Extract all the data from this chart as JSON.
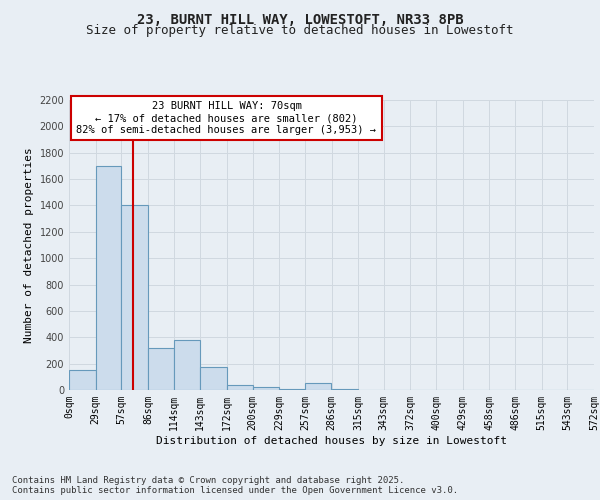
{
  "title": "23, BURNT HILL WAY, LOWESTOFT, NR33 8PB",
  "subtitle": "Size of property relative to detached houses in Lowestoft",
  "xlabel": "Distribution of detached houses by size in Lowestoft",
  "ylabel": "Number of detached properties",
  "bar_values": [
    150,
    1700,
    1400,
    320,
    380,
    175,
    40,
    20,
    5,
    50,
    5,
    2,
    2,
    1,
    1,
    1,
    0,
    0,
    0,
    0
  ],
  "bin_edges": [
    0,
    29,
    57,
    86,
    114,
    143,
    172,
    200,
    229,
    257,
    286,
    315,
    343,
    372,
    400,
    429,
    458,
    486,
    515,
    543,
    572
  ],
  "bar_color": "#ccdcec",
  "bar_edgecolor": "#6699bb",
  "grid_color": "#d0d8e0",
  "background_color": "#e8eef4",
  "vline_x": 70,
  "vline_color": "#cc0000",
  "annotation_text": "23 BURNT HILL WAY: 70sqm\n← 17% of detached houses are smaller (802)\n82% of semi-detached houses are larger (3,953) →",
  "annotation_box_color": "#ffffff",
  "annotation_border_color": "#cc0000",
  "ylim": [
    0,
    2200
  ],
  "yticks": [
    0,
    200,
    400,
    600,
    800,
    1000,
    1200,
    1400,
    1600,
    1800,
    2000,
    2200
  ],
  "xtick_labels": [
    "0sqm",
    "29sqm",
    "57sqm",
    "86sqm",
    "114sqm",
    "143sqm",
    "172sqm",
    "200sqm",
    "229sqm",
    "257sqm",
    "286sqm",
    "315sqm",
    "343sqm",
    "372sqm",
    "400sqm",
    "429sqm",
    "458sqm",
    "486sqm",
    "515sqm",
    "543sqm",
    "572sqm"
  ],
  "footnote": "Contains HM Land Registry data © Crown copyright and database right 2025.\nContains public sector information licensed under the Open Government Licence v3.0.",
  "title_fontsize": 10,
  "subtitle_fontsize": 9,
  "axis_label_fontsize": 8,
  "tick_fontsize": 7,
  "annotation_fontsize": 7.5,
  "footnote_fontsize": 6.5
}
